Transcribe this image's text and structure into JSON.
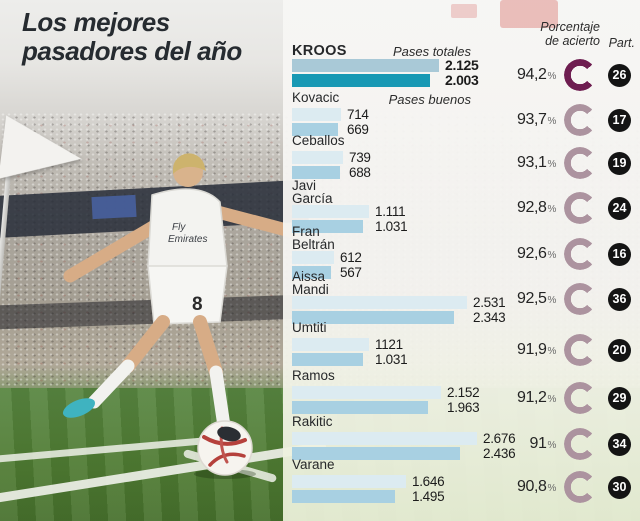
{
  "title": {
    "line1": "Los mejores",
    "line2": "pasadores del año"
  },
  "photo": {
    "shirt_number": "8",
    "sponsor_line1": "Fly",
    "sponsor_line2": "Emirates"
  },
  "chart_data": {
    "type": "bar",
    "title": "Los mejores pasadores del año",
    "layout": {
      "orientation": "horizontal",
      "legend_position": "top-right",
      "grid": false
    },
    "x_max": 2676,
    "legend": {
      "total": "Pases totales",
      "good": "Pases buenos"
    },
    "headers": {
      "accuracy": "Porcentaje\nde acierto",
      "matches": "Part."
    },
    "players": [
      {
        "name": "KROOS",
        "total": 2125,
        "total_label": "2.125",
        "good": 2003,
        "good_label": "2.003",
        "accuracy": 94.2,
        "accuracy_label": "94,2",
        "matches": "26",
        "highlight": true
      },
      {
        "name": "Kovacic",
        "total": 714,
        "total_label": "714",
        "good": 669,
        "good_label": "669",
        "accuracy": 93.7,
        "accuracy_label": "93,7",
        "matches": "17",
        "highlight": false
      },
      {
        "name": "Ceballos",
        "total": 739,
        "total_label": "739",
        "good": 688,
        "good_label": "688",
        "accuracy": 93.1,
        "accuracy_label": "93,1",
        "matches": "19",
        "highlight": false
      },
      {
        "name": "Javi\nGarcía",
        "total": 1111,
        "total_label": "1.111",
        "good": 1031,
        "good_label": "1.031",
        "accuracy": 92.8,
        "accuracy_label": "92,8",
        "matches": "24",
        "highlight": false
      },
      {
        "name": "Fran\nBeltrán",
        "total": 612,
        "total_label": "612",
        "good": 567,
        "good_label": "567",
        "accuracy": 92.6,
        "accuracy_label": "92,6",
        "matches": "16",
        "highlight": false
      },
      {
        "name": "Aissa\nMandi",
        "total": 2531,
        "total_label": "2.531",
        "good": 2343,
        "good_label": "2.343",
        "accuracy": 92.5,
        "accuracy_label": "92,5",
        "matches": "36",
        "highlight": false
      },
      {
        "name": "Umtiti",
        "total": 1121,
        "total_label": "1121",
        "good": 1031,
        "good_label": "1.031",
        "accuracy": 91.9,
        "accuracy_label": "91,9",
        "matches": "20",
        "highlight": false
      },
      {
        "name": "Ramos",
        "total": 2152,
        "total_label": "2.152",
        "good": 1963,
        "good_label": "1.963",
        "accuracy": 91.2,
        "accuracy_label": "91,2",
        "matches": "29",
        "highlight": false
      },
      {
        "name": "Rakitic",
        "total": 2676,
        "total_label": "2.676",
        "good": 2436,
        "good_label": "2.436",
        "accuracy": 91.0,
        "accuracy_label": "91",
        "matches": "34",
        "highlight": false
      },
      {
        "name": "Varane",
        "total": 1646,
        "total_label": "1.646",
        "good": 1495,
        "good_label": "1.495",
        "accuracy": 90.8,
        "accuracy_label": "90,8",
        "matches": "30",
        "highlight": false
      }
    ]
  },
  "colors": {
    "bar_total": "#dcebf1",
    "bar_good": "#a8d0e2",
    "bar_total_hl": "#a9c9d7",
    "bar_good_hl": "#1899b4",
    "donut": "#ac939f",
    "donut_hl": "#6e1d50",
    "badge_bg": "#141414",
    "badge_text": "#ffffff",
    "title_text": "#262b30"
  }
}
